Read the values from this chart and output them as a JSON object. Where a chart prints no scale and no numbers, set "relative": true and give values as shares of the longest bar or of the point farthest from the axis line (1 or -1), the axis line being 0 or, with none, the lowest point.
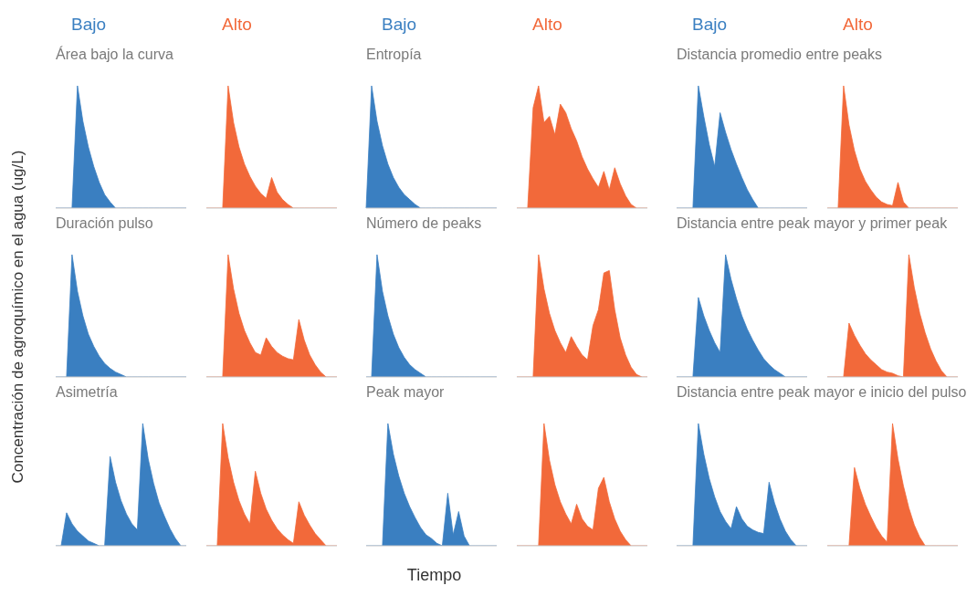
{
  "chart_data": [
    {
      "type": "area",
      "relative": true,
      "title": "Área bajo la curva",
      "categories": [
        null,
        null,
        null,
        null,
        null,
        null,
        null,
        null,
        null,
        null,
        null,
        null,
        null,
        null,
        null,
        null,
        null,
        null,
        null,
        null,
        null,
        null,
        null,
        null,
        null
      ],
      "series": [
        {
          "name": "Bajo",
          "color": "#3a7fc1",
          "values": [
            0,
            0,
            0,
            0,
            1,
            0.71,
            0.5,
            0.34,
            0.21,
            0.11,
            0.05,
            0,
            0,
            0,
            0,
            0,
            0,
            0,
            0,
            0,
            0,
            0,
            0,
            0,
            0
          ]
        }
      ]
    },
    {
      "type": "area",
      "relative": true,
      "categories": [
        null,
        null,
        null,
        null,
        null,
        null,
        null,
        null,
        null,
        null,
        null,
        null,
        null,
        null,
        null,
        null,
        null,
        null,
        null,
        null,
        null,
        null,
        null,
        null,
        null
      ],
      "series": [
        {
          "name": "Alto",
          "color": "#f2693a",
          "values": [
            0,
            0,
            0,
            0,
            1,
            0.7,
            0.5,
            0.36,
            0.26,
            0.18,
            0.12,
            0.08,
            0.25,
            0.13,
            0.07,
            0.03,
            0,
            0,
            0,
            0,
            0,
            0,
            0,
            0,
            0
          ]
        }
      ]
    },
    {
      "type": "area",
      "relative": true,
      "title": "Entropía",
      "categories": [
        null,
        null,
        null,
        null,
        null,
        null,
        null,
        null,
        null,
        null,
        null,
        null,
        null,
        null,
        null,
        null,
        null,
        null,
        null,
        null,
        null,
        null,
        null,
        null,
        null
      ],
      "series": [
        {
          "name": "Bajo",
          "color": "#3a7fc1",
          "values": [
            0,
            1,
            0.71,
            0.51,
            0.36,
            0.25,
            0.17,
            0.11,
            0.07,
            0.03,
            0,
            0,
            0,
            0,
            0,
            0,
            0,
            0,
            0,
            0,
            0,
            0,
            0,
            0,
            0
          ]
        }
      ]
    },
    {
      "type": "area",
      "relative": true,
      "categories": [
        null,
        null,
        null,
        null,
        null,
        null,
        null,
        null,
        null,
        null,
        null,
        null,
        null,
        null,
        null,
        null,
        null,
        null,
        null,
        null,
        null,
        null,
        null,
        null,
        null
      ],
      "series": [
        {
          "name": "Alto",
          "color": "#f2693a",
          "values": [
            0,
            0,
            0,
            0.82,
            1,
            0.7,
            0.75,
            0.6,
            0.85,
            0.78,
            0.65,
            0.55,
            0.42,
            0.32,
            0.24,
            0.17,
            0.3,
            0.15,
            0.33,
            0.2,
            0.1,
            0.03,
            0,
            0,
            0
          ]
        }
      ]
    },
    {
      "type": "area",
      "relative": true,
      "title": "Distancia promedio entre peaks",
      "categories": [
        null,
        null,
        null,
        null,
        null,
        null,
        null,
        null,
        null,
        null,
        null,
        null,
        null,
        null,
        null,
        null,
        null,
        null,
        null,
        null,
        null,
        null,
        null,
        null,
        null
      ],
      "series": [
        {
          "name": "Bajo",
          "color": "#3a7fc1",
          "values": [
            0,
            0,
            0,
            0,
            1,
            0.75,
            0.52,
            0.34,
            0.78,
            0.62,
            0.48,
            0.36,
            0.25,
            0.15,
            0.07,
            0,
            0,
            0,
            0,
            0,
            0,
            0,
            0,
            0,
            0
          ]
        }
      ]
    },
    {
      "type": "area",
      "relative": true,
      "categories": [
        null,
        null,
        null,
        null,
        null,
        null,
        null,
        null,
        null,
        null,
        null,
        null,
        null,
        null,
        null,
        null,
        null,
        null,
        null,
        null,
        null,
        null,
        null,
        null,
        null
      ],
      "series": [
        {
          "name": "Alto",
          "color": "#f2693a",
          "values": [
            0,
            0,
            0,
            1,
            0.68,
            0.47,
            0.32,
            0.22,
            0.15,
            0.09,
            0.05,
            0.03,
            0.02,
            0.21,
            0.05,
            0,
            0,
            0,
            0,
            0,
            0,
            0,
            0,
            0,
            0
          ]
        }
      ]
    },
    {
      "type": "area",
      "relative": true,
      "title": "Duración pulso",
      "ylabel": "Concentración de agroquímico en el agua (ug/L)",
      "categories": [
        null,
        null,
        null,
        null,
        null,
        null,
        null,
        null,
        null,
        null,
        null,
        null,
        null,
        null,
        null,
        null,
        null,
        null,
        null,
        null,
        null,
        null,
        null,
        null,
        null
      ],
      "series": [
        {
          "color": "#3a7fc1",
          "values": [
            0,
            0,
            0,
            1,
            0.7,
            0.5,
            0.35,
            0.25,
            0.17,
            0.11,
            0.07,
            0.04,
            0.02,
            0,
            0,
            0,
            0,
            0,
            0,
            0,
            0,
            0,
            0,
            0,
            0
          ]
        }
      ]
    },
    {
      "type": "area",
      "relative": true,
      "categories": [
        null,
        null,
        null,
        null,
        null,
        null,
        null,
        null,
        null,
        null,
        null,
        null,
        null,
        null,
        null,
        null,
        null,
        null,
        null,
        null,
        null,
        null,
        null,
        null,
        null
      ],
      "series": [
        {
          "color": "#f2693a",
          "values": [
            0,
            0,
            0,
            0,
            1,
            0.72,
            0.52,
            0.38,
            0.28,
            0.2,
            0.18,
            0.32,
            0.25,
            0.2,
            0.17,
            0.15,
            0.14,
            0.47,
            0.3,
            0.18,
            0.1,
            0.04,
            0,
            0,
            0
          ]
        }
      ]
    },
    {
      "type": "area",
      "relative": true,
      "title": "Número de peaks",
      "categories": [
        null,
        null,
        null,
        null,
        null,
        null,
        null,
        null,
        null,
        null,
        null,
        null,
        null,
        null,
        null,
        null,
        null,
        null,
        null,
        null,
        null,
        null,
        null,
        null,
        null
      ],
      "series": [
        {
          "color": "#3a7fc1",
          "values": [
            0,
            0,
            1,
            0.7,
            0.5,
            0.35,
            0.24,
            0.16,
            0.1,
            0.06,
            0.03,
            0,
            0,
            0,
            0,
            0,
            0,
            0,
            0,
            0,
            0,
            0,
            0,
            0,
            0
          ]
        }
      ]
    },
    {
      "type": "area",
      "relative": true,
      "categories": [
        null,
        null,
        null,
        null,
        null,
        null,
        null,
        null,
        null,
        null,
        null,
        null,
        null,
        null,
        null,
        null,
        null,
        null,
        null,
        null,
        null,
        null,
        null,
        null,
        null
      ],
      "series": [
        {
          "color": "#f2693a",
          "values": [
            0,
            0,
            0,
            0,
            1,
            0.72,
            0.52,
            0.38,
            0.28,
            0.2,
            0.33,
            0.25,
            0.18,
            0.14,
            0.42,
            0.55,
            0.85,
            0.87,
            0.55,
            0.32,
            0.18,
            0.08,
            0.02,
            0,
            0
          ]
        }
      ]
    },
    {
      "type": "area",
      "relative": true,
      "title": "Distancia entre peak mayor y primer peak",
      "categories": [
        null,
        null,
        null,
        null,
        null,
        null,
        null,
        null,
        null,
        null,
        null,
        null,
        null,
        null,
        null,
        null,
        null,
        null,
        null,
        null,
        null,
        null,
        null,
        null,
        null
      ],
      "series": [
        {
          "color": "#3a7fc1",
          "values": [
            0,
            0,
            0,
            0,
            0.65,
            0.5,
            0.38,
            0.28,
            0.2,
            1,
            0.8,
            0.64,
            0.5,
            0.39,
            0.3,
            0.22,
            0.15,
            0.1,
            0.06,
            0.03,
            0,
            0,
            0,
            0,
            0
          ]
        }
      ]
    },
    {
      "type": "area",
      "relative": true,
      "categories": [
        null,
        null,
        null,
        null,
        null,
        null,
        null,
        null,
        null,
        null,
        null,
        null,
        null,
        null,
        null,
        null,
        null,
        null,
        null,
        null,
        null,
        null,
        null,
        null,
        null
      ],
      "series": [
        {
          "color": "#f2693a",
          "values": [
            0,
            0,
            0,
            0,
            0.44,
            0.34,
            0.26,
            0.19,
            0.14,
            0.1,
            0.06,
            0.04,
            0.03,
            0.01,
            0,
            1,
            0.73,
            0.52,
            0.36,
            0.23,
            0.13,
            0.05,
            0,
            0,
            0
          ]
        }
      ]
    },
    {
      "type": "area",
      "relative": true,
      "title": "Asimetría",
      "categories": [
        null,
        null,
        null,
        null,
        null,
        null,
        null,
        null,
        null,
        null,
        null,
        null,
        null,
        null,
        null,
        null,
        null,
        null,
        null,
        null,
        null,
        null,
        null,
        null,
        null
      ],
      "series": [
        {
          "color": "#3a7fc1",
          "values": [
            0,
            0,
            0.27,
            0.18,
            0.12,
            0.08,
            0.04,
            0.02,
            0,
            0,
            0.73,
            0.52,
            0.37,
            0.26,
            0.18,
            0.13,
            1,
            0.71,
            0.51,
            0.35,
            0.24,
            0.14,
            0.06,
            0,
            0
          ]
        }
      ]
    },
    {
      "type": "area",
      "relative": true,
      "categories": [
        null,
        null,
        null,
        null,
        null,
        null,
        null,
        null,
        null,
        null,
        null,
        null,
        null,
        null,
        null,
        null,
        null,
        null,
        null,
        null,
        null,
        null,
        null,
        null,
        null
      ],
      "series": [
        {
          "color": "#f2693a",
          "values": [
            0,
            0,
            0,
            1,
            0.72,
            0.52,
            0.37,
            0.26,
            0.18,
            0.61,
            0.43,
            0.3,
            0.21,
            0.14,
            0.09,
            0.05,
            0.02,
            0.36,
            0.25,
            0.17,
            0.1,
            0.05,
            0,
            0,
            0
          ]
        }
      ]
    },
    {
      "type": "area",
      "relative": true,
      "title": "Peak mayor",
      "xlabel": "Tiempo",
      "categories": [
        null,
        null,
        null,
        null,
        null,
        null,
        null,
        null,
        null,
        null,
        null,
        null,
        null,
        null,
        null,
        null,
        null,
        null,
        null,
        null,
        null,
        null,
        null,
        null,
        null
      ],
      "series": [
        {
          "color": "#3a7fc1",
          "values": [
            0,
            0,
            0,
            0,
            1,
            0.75,
            0.57,
            0.43,
            0.32,
            0.23,
            0.15,
            0.09,
            0.06,
            0.02,
            0,
            0.43,
            0.09,
            0.28,
            0.08,
            0,
            0,
            0,
            0,
            0,
            0
          ]
        }
      ]
    },
    {
      "type": "area",
      "relative": true,
      "categories": [
        null,
        null,
        null,
        null,
        null,
        null,
        null,
        null,
        null,
        null,
        null,
        null,
        null,
        null,
        null,
        null,
        null,
        null,
        null,
        null,
        null,
        null,
        null,
        null,
        null
      ],
      "series": [
        {
          "color": "#f2693a",
          "values": [
            0,
            0,
            0,
            0,
            0,
            1,
            0.7,
            0.5,
            0.36,
            0.26,
            0.18,
            0.34,
            0.22,
            0.16,
            0.13,
            0.47,
            0.56,
            0.36,
            0.22,
            0.12,
            0.05,
            0,
            0,
            0,
            0
          ]
        }
      ]
    },
    {
      "type": "area",
      "relative": true,
      "title": "Distancia entre peak mayor e inicio del pulso",
      "categories": [
        null,
        null,
        null,
        null,
        null,
        null,
        null,
        null,
        null,
        null,
        null,
        null,
        null,
        null,
        null,
        null,
        null,
        null,
        null,
        null,
        null,
        null,
        null,
        null,
        null
      ],
      "series": [
        {
          "color": "#3a7fc1",
          "values": [
            0,
            0,
            0,
            0,
            1,
            0.75,
            0.55,
            0.4,
            0.28,
            0.2,
            0.14,
            0.32,
            0.22,
            0.16,
            0.13,
            0.11,
            0.1,
            0.52,
            0.35,
            0.22,
            0.12,
            0.05,
            0,
            0,
            0
          ]
        }
      ]
    },
    {
      "type": "area",
      "relative": true,
      "categories": [
        null,
        null,
        null,
        null,
        null,
        null,
        null,
        null,
        null,
        null,
        null,
        null,
        null,
        null,
        null,
        null,
        null,
        null,
        null,
        null,
        null,
        null,
        null,
        null,
        null
      ],
      "series": [
        {
          "color": "#f2693a",
          "values": [
            0,
            0,
            0,
            0,
            0,
            0.64,
            0.47,
            0.34,
            0.24,
            0.15,
            0.08,
            0.03,
            1,
            0.71,
            0.49,
            0.31,
            0.17,
            0.07,
            0,
            0,
            0,
            0,
            0,
            0,
            0
          ]
        }
      ]
    }
  ]
}
